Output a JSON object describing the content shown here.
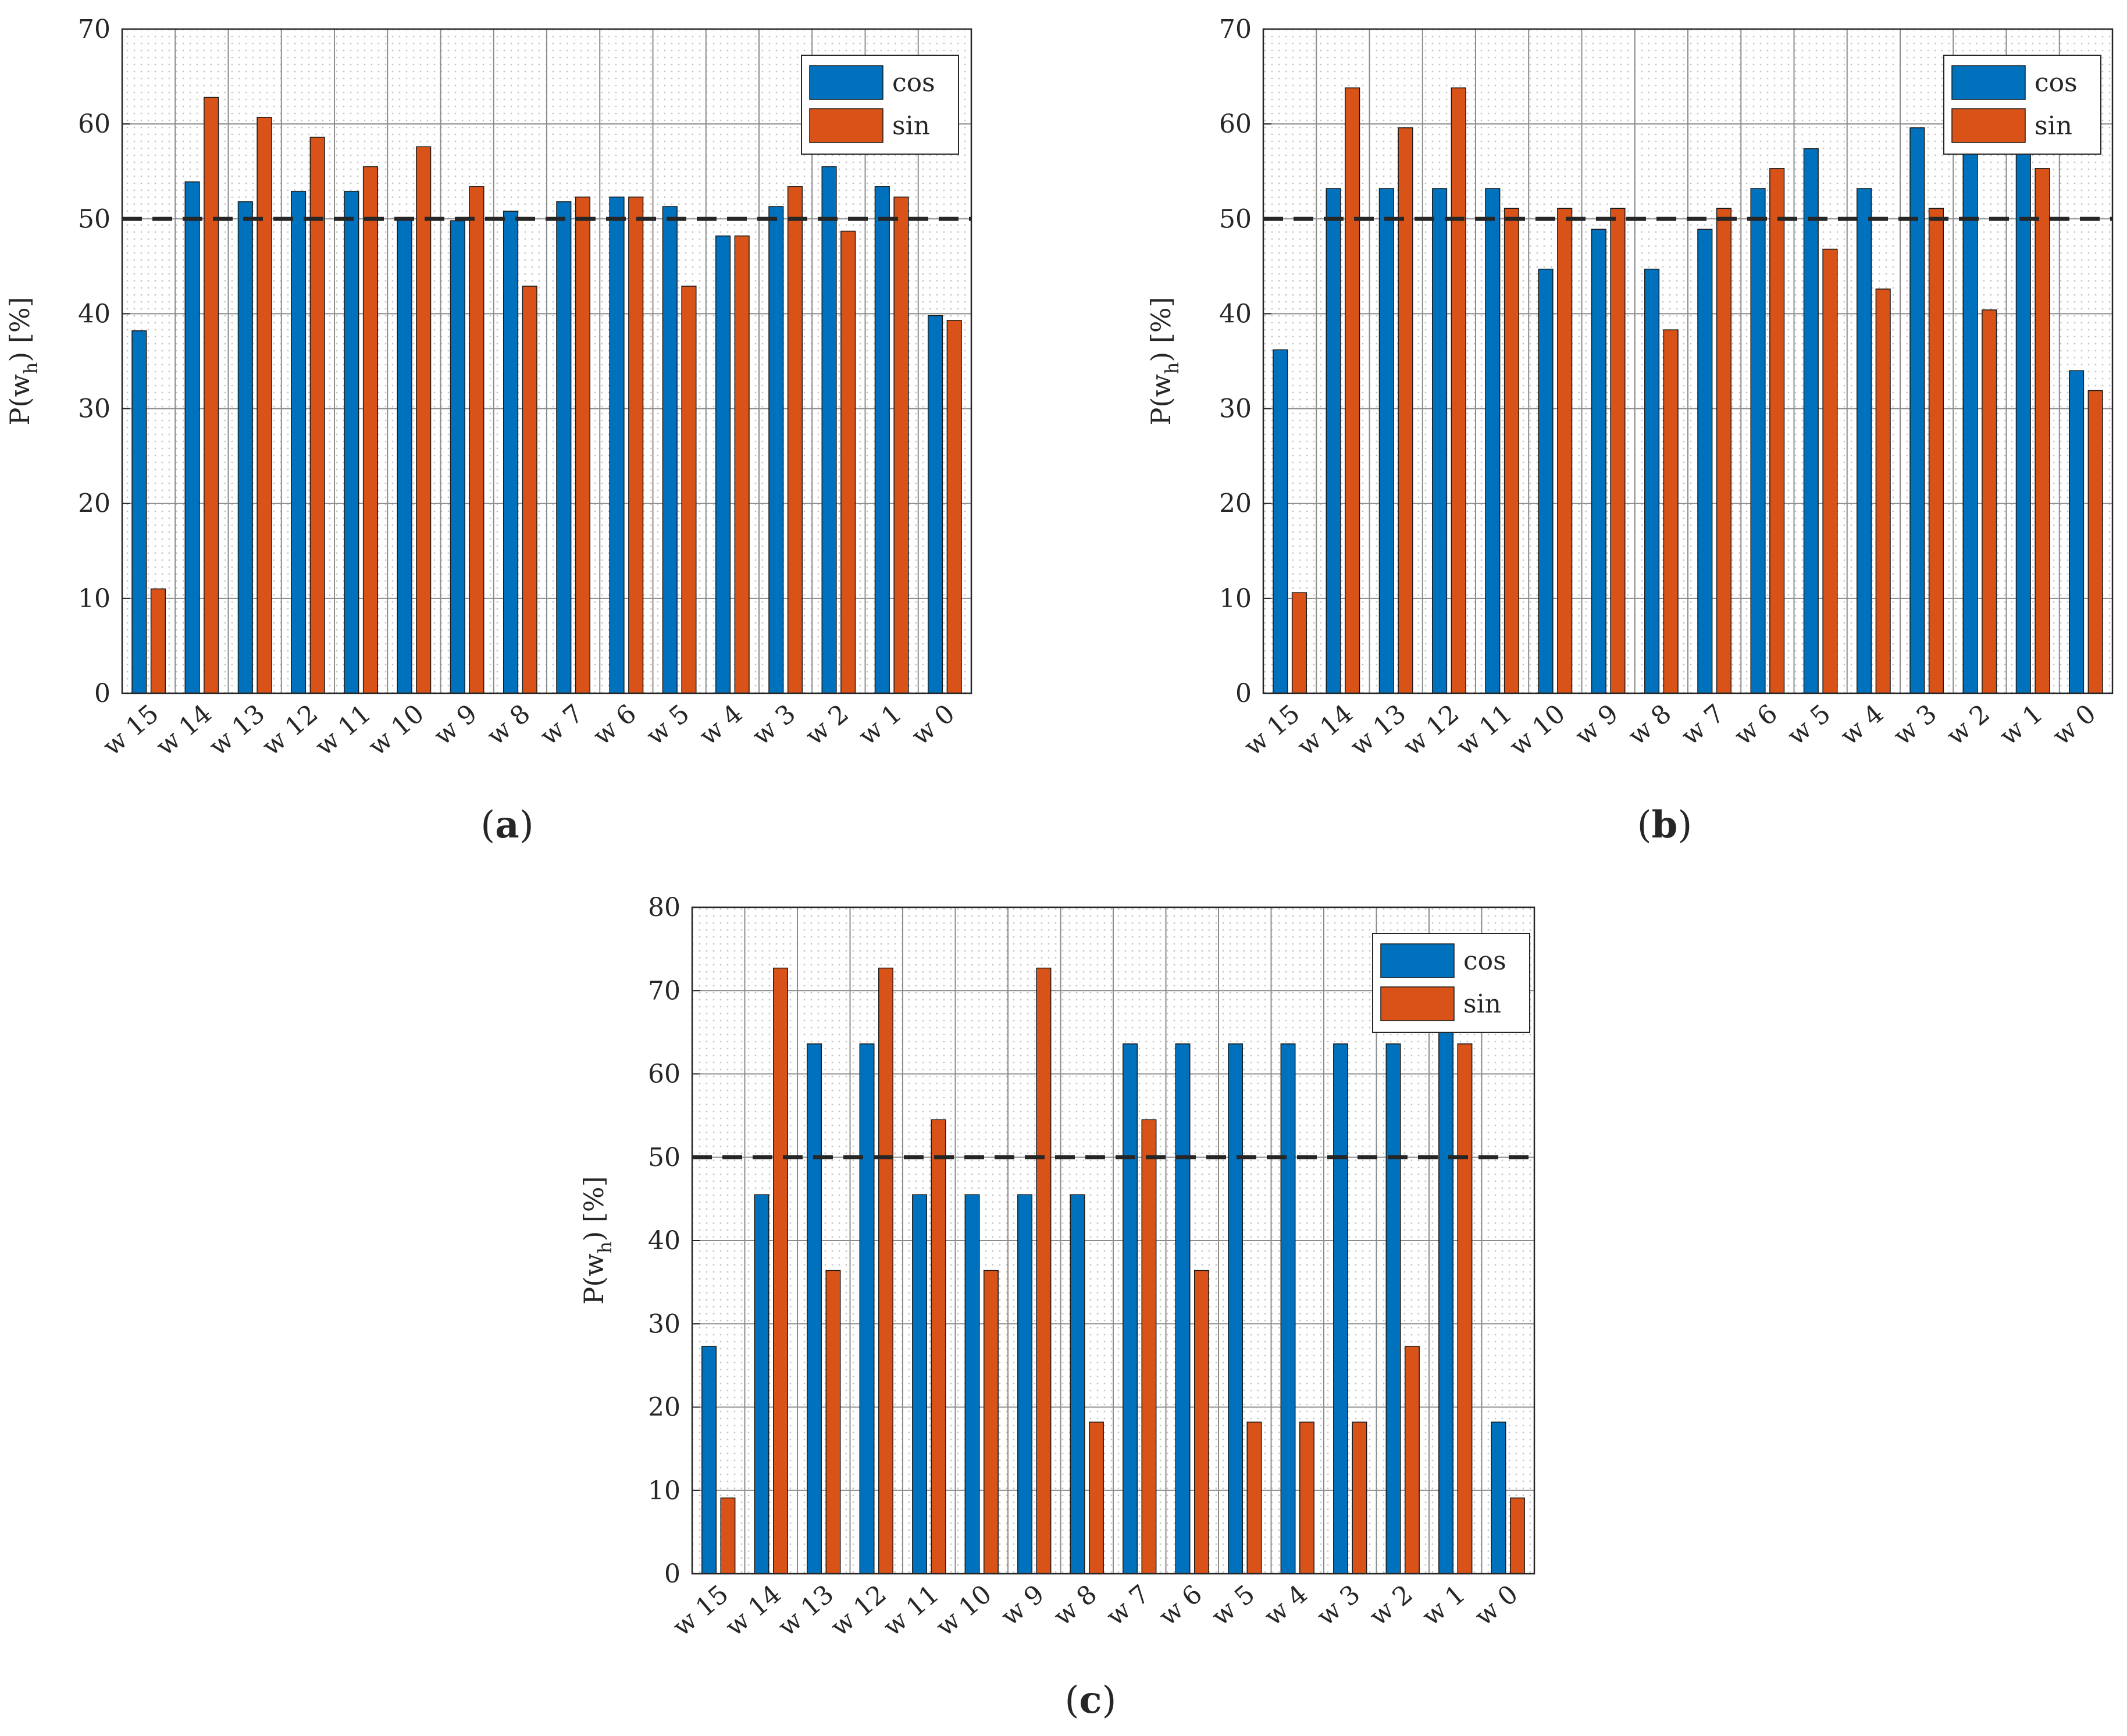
{
  "colors": {
    "cos": "#0072BD",
    "sin": "#D95319",
    "reference_line": "#262626",
    "grid": "#8c8c8c"
  },
  "chart_data": [
    {
      "type": "bar",
      "caption_letter": "a",
      "ylabel": "P(w",
      "ylabel_sub": "h",
      "ylabel_tail": ") [%]",
      "ylim": [
        0,
        70
      ],
      "yticks": [
        0,
        10,
        20,
        30,
        40,
        50,
        60,
        70
      ],
      "reference_value": 50,
      "legend_position": "top-right",
      "categories": [
        "w 15",
        "w 14",
        "w 13",
        "w 12",
        "w 11",
        "w 10",
        "w 9",
        "w 8",
        "w 7",
        "w 6",
        "w 5",
        "w 4",
        "w 3",
        "w 2",
        "w 1",
        "w 0"
      ],
      "series": [
        {
          "name": "cos",
          "values": [
            38.2,
            53.9,
            51.8,
            52.9,
            52.9,
            50.0,
            49.8,
            50.8,
            51.8,
            52.3,
            51.3,
            48.2,
            51.3,
            55.5,
            53.4,
            39.8
          ]
        },
        {
          "name": "sin",
          "values": [
            11.0,
            62.8,
            60.7,
            58.6,
            55.5,
            57.6,
            53.4,
            42.9,
            52.3,
            52.3,
            42.9,
            48.2,
            53.4,
            48.7,
            52.3,
            39.3
          ]
        }
      ]
    },
    {
      "type": "bar",
      "caption_letter": "b",
      "ylabel": "P(w",
      "ylabel_sub": "h",
      "ylabel_tail": ") [%]",
      "ylim": [
        0,
        70
      ],
      "yticks": [
        0,
        10,
        20,
        30,
        40,
        50,
        60,
        70
      ],
      "reference_value": 50,
      "legend_position": "top-right",
      "categories": [
        "w 15",
        "w 14",
        "w 13",
        "w 12",
        "w 11",
        "w 10",
        "w 9",
        "w 8",
        "w 7",
        "w 6",
        "w 5",
        "w 4",
        "w 3",
        "w 2",
        "w 1",
        "w 0"
      ],
      "series": [
        {
          "name": "cos",
          "values": [
            36.2,
            53.2,
            53.2,
            53.2,
            53.2,
            44.7,
            48.9,
            44.7,
            48.9,
            53.2,
            57.4,
            53.2,
            59.6,
            57.4,
            57.4,
            34.0
          ]
        },
        {
          "name": "sin",
          "values": [
            10.6,
            63.8,
            59.6,
            63.8,
            51.1,
            51.1,
            51.1,
            38.3,
            51.1,
            55.3,
            46.8,
            42.6,
            51.1,
            40.4,
            55.3,
            31.9
          ]
        }
      ]
    },
    {
      "type": "bar",
      "caption_letter": "c",
      "ylabel": "P(w",
      "ylabel_sub": "h",
      "ylabel_tail": ") [%]",
      "ylim": [
        0,
        80
      ],
      "yticks": [
        0,
        10,
        20,
        30,
        40,
        50,
        60,
        70,
        80
      ],
      "reference_value": 50,
      "legend_position": "top-right",
      "categories": [
        "w 15",
        "w 14",
        "w 13",
        "w 12",
        "w 11",
        "w 10",
        "w 9",
        "w 8",
        "w 7",
        "w 6",
        "w 5",
        "w 4",
        "w 3",
        "w 2",
        "w 1",
        "w 0"
      ],
      "series": [
        {
          "name": "cos",
          "values": [
            27.3,
            45.5,
            63.6,
            63.6,
            45.5,
            45.5,
            45.5,
            45.5,
            63.6,
            63.6,
            63.6,
            63.6,
            63.6,
            63.6,
            72.7,
            18.2
          ]
        },
        {
          "name": "sin",
          "values": [
            9.1,
            72.7,
            36.4,
            72.7,
            54.5,
            36.4,
            72.7,
            18.2,
            54.5,
            36.4,
            18.2,
            18.2,
            18.2,
            27.3,
            63.6,
            9.1
          ]
        }
      ]
    }
  ]
}
